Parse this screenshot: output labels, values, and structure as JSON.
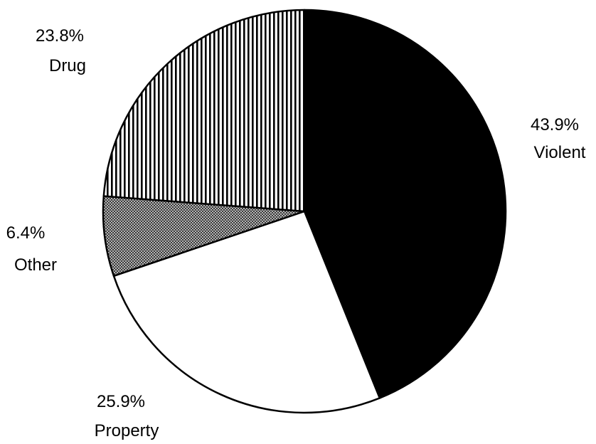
{
  "chart_data": {
    "type": "pie",
    "title": "",
    "slices": [
      {
        "pct_label": "43.9%",
        "name": "Violent",
        "value": 43.9,
        "fill": "solid-black"
      },
      {
        "pct_label": "25.9%",
        "name": "Property",
        "value": 25.9,
        "fill": "white"
      },
      {
        "pct_label": "6.4%",
        "name": "Other",
        "value": 6.4,
        "fill": "dotted-gray"
      },
      {
        "pct_label": "23.8%",
        "name": "Drug",
        "value": 23.8,
        "fill": "vertical-stripes"
      }
    ],
    "start_position": "12 o'clock",
    "direction": "clockwise",
    "colors": {
      "violent": "#000000",
      "property": "#ffffff",
      "other": "#8c8c8c",
      "drug_stripes": "#000000",
      "outline": "#000000"
    }
  }
}
